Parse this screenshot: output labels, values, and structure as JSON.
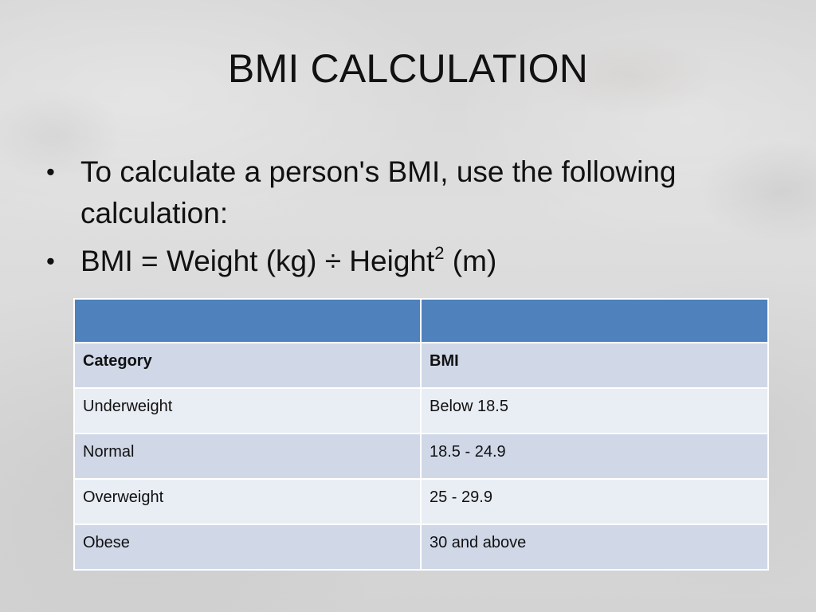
{
  "slide": {
    "title": "BMI CALCULATION",
    "bullets": [
      {
        "marker": "•",
        "text_line_1": "To calculate a person's BMI, use the following",
        "text_line_2": "calculation:"
      },
      {
        "marker": "•",
        "formula_prefix": "BMI = Weight (kg) ÷ Height",
        "formula_superscript": "2",
        "formula_suffix": " (m)"
      }
    ]
  },
  "table": {
    "header_cells": [
      "",
      ""
    ],
    "columns": [
      "Category",
      "BMI"
    ],
    "rows": [
      [
        "Underweight",
        "Below 18.5"
      ],
      [
        "Normal",
        "18.5 - 24.9"
      ],
      [
        "Overweight",
        "25 - 29.9"
      ],
      [
        "Obese",
        "30 and above"
      ]
    ]
  },
  "colors": {
    "header_blue": "#4f81bd",
    "row_dark": "#d0d8e8",
    "row_light": "#e9edf4",
    "text": "#111111"
  }
}
